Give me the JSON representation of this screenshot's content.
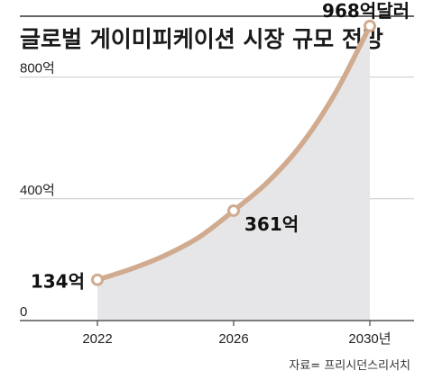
{
  "chart_data": {
    "type": "area",
    "title": "글로벌 게이미피케이션 시장 규모 전망",
    "xlabel": "",
    "ylabel": "",
    "x": [
      2022,
      2023,
      2024,
      2025,
      2026,
      2027,
      2028,
      2029,
      2030
    ],
    "series": [
      {
        "values": [
          134,
          170,
          215,
          275,
          361,
          455,
          580,
          750,
          968
        ]
      }
    ],
    "ylim": [
      0,
      1000
    ],
    "y_ticks": [
      {
        "value": 0,
        "label": "0"
      },
      {
        "value": 400,
        "label": "400억"
      },
      {
        "value": 800,
        "label": "800억"
      }
    ],
    "x_ticks": [
      {
        "value": 2022,
        "label": "2022"
      },
      {
        "value": 2026,
        "label": "2026"
      },
      {
        "value": 2030,
        "label": "2030년"
      }
    ],
    "data_labels": [
      {
        "x": 2022,
        "value": 134,
        "label": "134억"
      },
      {
        "x": 2026,
        "value": 361,
        "label": "361억"
      },
      {
        "x": 2030,
        "value": 968,
        "label": "968억달러"
      }
    ],
    "grid": true,
    "legend": "none",
    "source": "자료= 프리시던스리서치",
    "colors": {
      "line": "#d1ab8f",
      "fill": "#e6e6e8",
      "grid": "#c9c9c9",
      "axis": "#555555",
      "title": "#1a1a1a",
      "label_accent": "#6b4c39",
      "marker_fill": "#ffffff"
    }
  }
}
